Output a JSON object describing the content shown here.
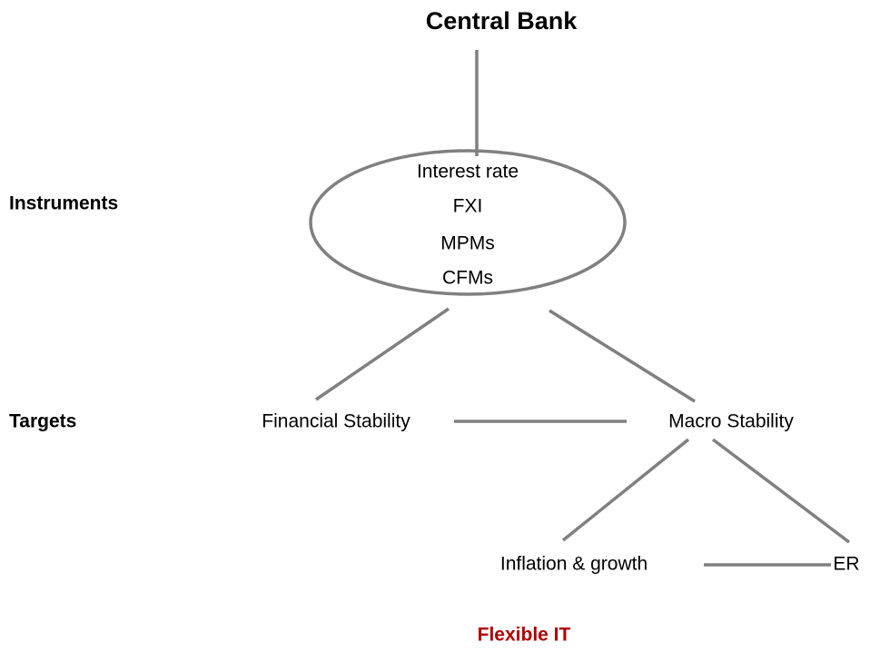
{
  "title": "Central Bank",
  "labels": {
    "instruments": "Instruments",
    "targets": "Targets"
  },
  "instruments": [
    "Interest rate",
    "FXI",
    "MPMs",
    "CFMs"
  ],
  "nodes": [
    "Financial Stability",
    "Macro Stability",
    "Inflation & growth",
    "ER"
  ],
  "footer": "Flexible IT"
}
